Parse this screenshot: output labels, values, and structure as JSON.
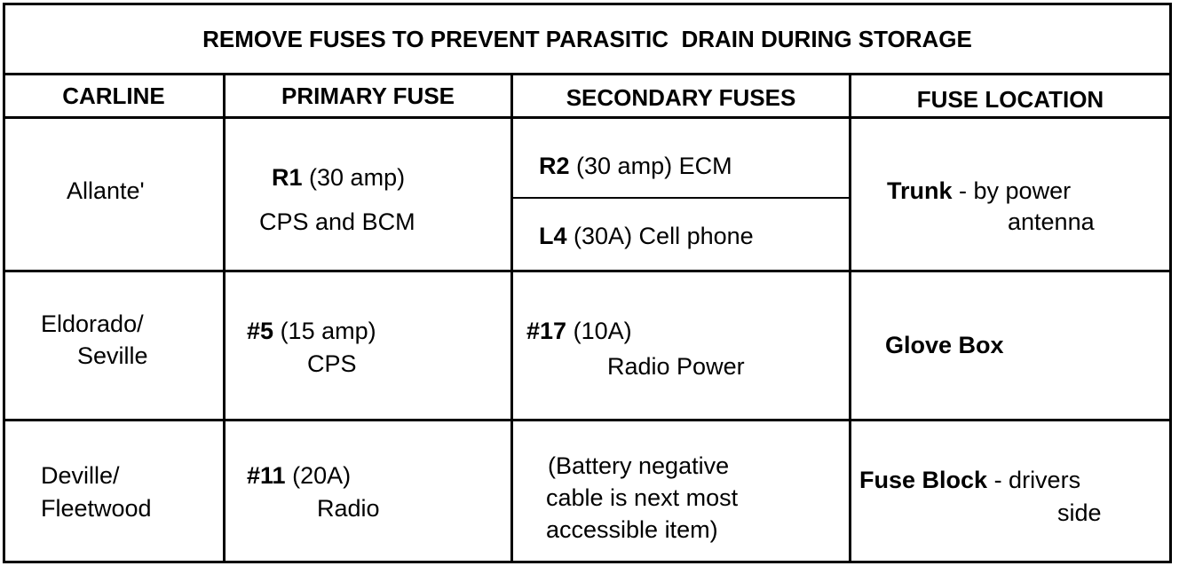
{
  "title": "REMOVE FUSES TO PREVENT PARASITIC  DRAIN DURING STORAGE",
  "headers": [
    "CARLINE",
    "PRIMARY FUSE",
    "SECONDARY FUSES",
    "FUSE LOCATION"
  ],
  "rows": [
    {
      "carline": [
        "Allante'"
      ],
      "primary": {
        "id": "R1",
        "rating": "(30 amp)",
        "desc": "CPS and BCM"
      },
      "secondary": [
        {
          "id": "R2",
          "text": "(30 amp) ECM"
        },
        {
          "id": "L4",
          "text": "(30A) Cell phone"
        }
      ],
      "location": {
        "bold": "Trunk",
        "text": "- by power",
        "text2": "antenna"
      }
    },
    {
      "carline": [
        "Eldorado/",
        "Seville"
      ],
      "primary": {
        "id": "#5",
        "rating": "(15 amp)",
        "desc": "CPS"
      },
      "secondary": [
        {
          "id": "#17",
          "text": "(10A)",
          "text2": "Radio Power"
        }
      ],
      "location": {
        "bold": "Glove Box"
      }
    },
    {
      "carline": [
        "Deville/",
        "Fleetwood"
      ],
      "primary": {
        "id": "#11",
        "rating": "(20A)",
        "desc": "Radio"
      },
      "secondary_note": [
        "(Battery negative",
        "cable is next most",
        "accessible item)"
      ],
      "location": {
        "bold": "Fuse Block",
        "text": "- drivers",
        "text2": "side"
      }
    }
  ]
}
